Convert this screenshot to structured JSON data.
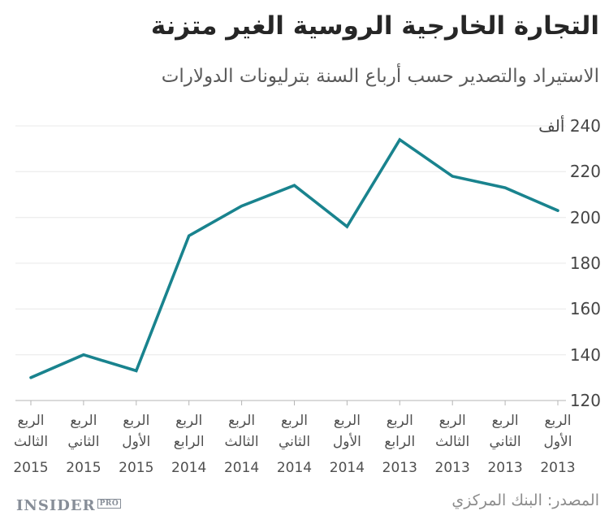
{
  "header": {
    "title": "التجارة الخارجية الروسية الغير متزنة",
    "subtitle": "الاستيراد والتصدير حسب أرباع السنة بترليونات الدولارات"
  },
  "footer": {
    "logo_main": "INSIDER",
    "logo_sub": "PRO",
    "source": "المصدر: البنك المركزي"
  },
  "chart_data": {
    "type": "line",
    "title": "التجارة الخارجية الروسية الغير متزنة",
    "subtitle": "الاستيراد والتصدير حسب أرباع السنة بترليونات الدولارات",
    "direction": "rtl",
    "order_note": "categories listed in on-screen left-to-right order; chronology runs right-to-left (newest quarter on the left)",
    "categories": [
      {
        "quarter": "الربع",
        "ordinal": "الثالث",
        "year": "2015"
      },
      {
        "quarter": "الربع",
        "ordinal": "الثاني",
        "year": "2015"
      },
      {
        "quarter": "الربع",
        "ordinal": "الأول",
        "year": "2015"
      },
      {
        "quarter": "الربع",
        "ordinal": "الرابع",
        "year": "2014"
      },
      {
        "quarter": "الربع",
        "ordinal": "الثالث",
        "year": "2014"
      },
      {
        "quarter": "الربع",
        "ordinal": "الثاني",
        "year": "2014"
      },
      {
        "quarter": "الربع",
        "ordinal": "الأول",
        "year": "2014"
      },
      {
        "quarter": "الربع",
        "ordinal": "الرابع",
        "year": "2013"
      },
      {
        "quarter": "الربع",
        "ordinal": "الثالث",
        "year": "2013"
      },
      {
        "quarter": "الربع",
        "ordinal": "الثاني",
        "year": "2013"
      },
      {
        "quarter": "الربع",
        "ordinal": "الأول",
        "year": "2013"
      }
    ],
    "values": [
      130,
      140,
      133,
      192,
      205,
      214,
      196,
      234,
      218,
      213,
      203
    ],
    "ylim": [
      120,
      240
    ],
    "yticks": [
      {
        "value": 240,
        "label": "240 ألف"
      },
      {
        "value": 220,
        "label": "220"
      },
      {
        "value": 200,
        "label": "200"
      },
      {
        "value": 180,
        "label": "180"
      },
      {
        "value": 160,
        "label": "160"
      },
      {
        "value": 140,
        "label": "140"
      },
      {
        "value": 120,
        "label": "120"
      }
    ],
    "grid": true,
    "legend": false,
    "colors": {
      "line": "#19838e",
      "grid": "#e8e8e8",
      "axis": "#b5b5b5"
    }
  }
}
